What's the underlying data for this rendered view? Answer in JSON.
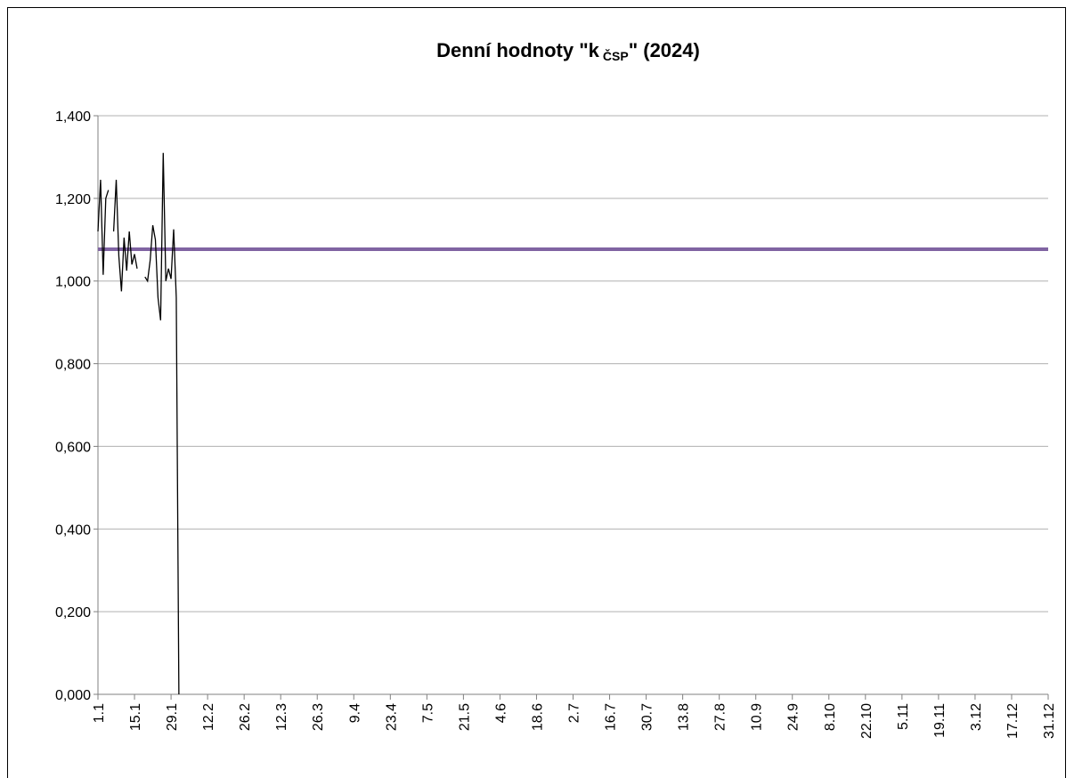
{
  "chart_data": {
    "type": "line",
    "title": "Denní hodnoty \"k",
    "title_subscript": "ČSP",
    "title_suffix": "\"  (2024)",
    "x": [
      0,
      1,
      2,
      3,
      4,
      5,
      6,
      7,
      8,
      9,
      10,
      11,
      12,
      13,
      14,
      15,
      16,
      17,
      18,
      19,
      20,
      21,
      22,
      23,
      24,
      25,
      26,
      27,
      28,
      29,
      30,
      31
    ],
    "series": [
      {
        "color": "#000000",
        "values": [
          1.12,
          1.245,
          1.015,
          1.2,
          1.22,
          null,
          1.12,
          1.245,
          1.06,
          0.975,
          1.105,
          1.025,
          1.12,
          1.04,
          1.065,
          1.03,
          null,
          null,
          1.01,
          1.0,
          1.05,
          1.135,
          1.1,
          0.96,
          0.905,
          1.31,
          1.0,
          1.03,
          1.005,
          1.125,
          0.96,
          0.0
        ]
      }
    ],
    "reference_line": {
      "value": 1.077,
      "color": "#8064a2"
    },
    "xlim": [
      0,
      364
    ],
    "xticks": [
      {
        "value": 0,
        "label": "1.1"
      },
      {
        "value": 14,
        "label": "15.1"
      },
      {
        "value": 28,
        "label": "29.1"
      },
      {
        "value": 42,
        "label": "12.2"
      },
      {
        "value": 56,
        "label": "26.2"
      },
      {
        "value": 70,
        "label": "12.3"
      },
      {
        "value": 84,
        "label": "26.3"
      },
      {
        "value": 98,
        "label": "9.4"
      },
      {
        "value": 112,
        "label": "23.4"
      },
      {
        "value": 126,
        "label": "7.5"
      },
      {
        "value": 140,
        "label": "21.5"
      },
      {
        "value": 154,
        "label": "4.6"
      },
      {
        "value": 168,
        "label": "18.6"
      },
      {
        "value": 182,
        "label": "2.7"
      },
      {
        "value": 196,
        "label": "16.7"
      },
      {
        "value": 210,
        "label": "30.7"
      },
      {
        "value": 224,
        "label": "13.8"
      },
      {
        "value": 238,
        "label": "27.8"
      },
      {
        "value": 252,
        "label": "10.9"
      },
      {
        "value": 266,
        "label": "24.9"
      },
      {
        "value": 280,
        "label": "8.10"
      },
      {
        "value": 294,
        "label": "22.10"
      },
      {
        "value": 308,
        "label": "5.11"
      },
      {
        "value": 322,
        "label": "19.11"
      },
      {
        "value": 336,
        "label": "3.12"
      },
      {
        "value": 350,
        "label": "17.12"
      },
      {
        "value": 364,
        "label": "31.12"
      }
    ],
    "ylim": [
      0,
      1.4
    ],
    "yticks": [
      {
        "value": 0,
        "label": "0,000"
      },
      {
        "value": 0.2,
        "label": "0,200"
      },
      {
        "value": 0.4,
        "label": "0,400"
      },
      {
        "value": 0.6,
        "label": "0,600"
      },
      {
        "value": 0.8,
        "label": "0,800"
      },
      {
        "value": 1.0,
        "label": "1,000"
      },
      {
        "value": 1.2,
        "label": "1,200"
      },
      {
        "value": 1.4,
        "label": "1,400"
      }
    ],
    "grid": true
  }
}
